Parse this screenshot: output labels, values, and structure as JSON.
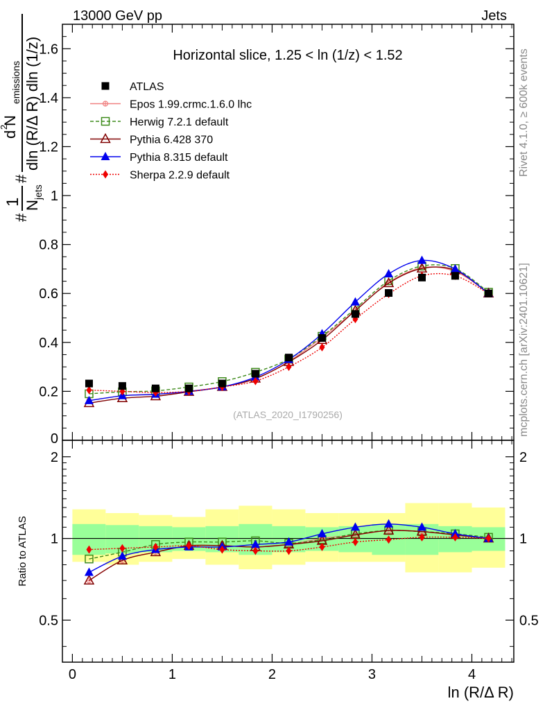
{
  "header": {
    "left": "13000 GeV pp",
    "right": "Jets",
    "plot_title": "Horizontal slice, 1.25 < ln (1/z) < 1.52",
    "watermark": "(ATLAS_2020_I1790256)",
    "side_top": "Rivet 4.1.0, ≥ 600k events",
    "side_bottom": "mcplots.cern.ch [arXiv:2401.10621]"
  },
  "labels": {
    "y_main": "1/N_jets dN_emissions/dln(R/ΔR) dln(1/z)",
    "y_main_parts": {
      "frac1_num": "1",
      "frac1_den": "N",
      "frac1_den_sub": "jets",
      "frac2_num_prefix": "d",
      "frac2_num_sup": "2",
      "frac2_num_main": " N",
      "frac2_num_sub": "emissions",
      "frac2_den": "dln (R/Δ R) dln (1/z)",
      "hash": "#"
    },
    "y_ratio": "Ratio to ATLAS",
    "x": "ln (R/Δ R)"
  },
  "colors": {
    "atlas": "#000000",
    "epos": "#f08080",
    "herwig": "#3d8a1a",
    "pythia6": "#800000",
    "pythia8": "#0000ee",
    "sherpa": "#ee0000",
    "band_inner": "#99ff99",
    "band_outer": "#ffff99"
  },
  "chart_data": {
    "type": "line",
    "title": "Horizontal slice, 1.25 < ln (1/z) < 1.52",
    "xlabel": "ln (R/Δ R)",
    "ylabel": "1/N_jets dN_emissions/dln(R/ΔR) dln(1/z)",
    "xlim": [
      -0.1,
      4.42
    ],
    "ylim": [
      0,
      1.7
    ],
    "ratio_ylim": [
      0.35,
      2.3
    ],
    "x_ticks": [
      0,
      1,
      2,
      3,
      4
    ],
    "x_tick_labels": [
      "0",
      "1",
      "2",
      "3",
      "4"
    ],
    "y_ticks": [
      0.2,
      0.4,
      0.6,
      0.8,
      1,
      1.2,
      1.4,
      1.6
    ],
    "y_tick_labels": [
      "0.2",
      "0.4",
      "0.6",
      "0.8",
      "1",
      "1.2",
      "1.4",
      "1.6"
    ],
    "y_ticks_extra_label": "0",
    "ratio_ticks": [
      0.5,
      1,
      2
    ],
    "ratio_tick_labels": [
      "0.5",
      "1",
      "2"
    ],
    "bin_edges": [
      0,
      0.333,
      0.666,
      1.0,
      1.333,
      1.666,
      2.0,
      2.333,
      2.666,
      3.0,
      3.333,
      3.666,
      4.0,
      4.333
    ],
    "x": [
      0.167,
      0.5,
      0.833,
      1.167,
      1.5,
      1.833,
      2.167,
      2.5,
      2.833,
      3.167,
      3.5,
      3.833,
      4.167
    ],
    "band_inner": [
      [
        0.87,
        1.13
      ],
      [
        0.88,
        1.12
      ],
      [
        0.89,
        1.11
      ],
      [
        0.9,
        1.1
      ],
      [
        0.89,
        1.11
      ],
      [
        0.87,
        1.13
      ],
      [
        0.89,
        1.11
      ],
      [
        0.9,
        1.1
      ],
      [
        0.89,
        1.11
      ],
      [
        0.87,
        1.13
      ],
      [
        0.87,
        1.13
      ],
      [
        0.89,
        1.11
      ],
      [
        0.9,
        1.1
      ]
    ],
    "band_outer": [
      [
        0.82,
        1.28
      ],
      [
        0.8,
        1.24
      ],
      [
        0.82,
        1.22
      ],
      [
        0.84,
        1.2
      ],
      [
        0.8,
        1.28
      ],
      [
        0.77,
        1.32
      ],
      [
        0.8,
        1.28
      ],
      [
        0.82,
        1.24
      ],
      [
        0.82,
        1.24
      ],
      [
        0.82,
        1.24
      ],
      [
        0.75,
        1.35
      ],
      [
        0.75,
        1.35
      ],
      [
        0.78,
        1.3
      ]
    ],
    "legend_position": "top-left",
    "series": [
      {
        "name": "ATLAS",
        "key": "atlas",
        "values": [
          0.232,
          0.222,
          0.212,
          0.212,
          0.232,
          0.272,
          0.338,
          0.418,
          0.516,
          0.602,
          0.665,
          0.672,
          0.6
        ],
        "ratio": [
          1,
          1,
          1,
          1,
          1,
          1,
          1,
          1,
          1,
          1,
          1,
          1,
          1
        ],
        "marker": "square",
        "dash": ""
      },
      {
        "name": "Epos 1.99.crmc.1.6.0 lhc",
        "key": "epos",
        "values": [
          0.162,
          0.182,
          0.188,
          0.2,
          0.218,
          0.252,
          0.322,
          0.42,
          0.53,
          0.645,
          0.705,
          0.69,
          0.602
        ],
        "ratio": [
          0.7,
          0.83,
          0.89,
          0.94,
          0.94,
          0.93,
          0.95,
          1.0,
          1.03,
          1.07,
          1.06,
          1.03,
          1.0
        ],
        "marker": "cross",
        "dash": ""
      },
      {
        "name": "Herwig 7.2.1 default",
        "key": "herwig",
        "values": [
          0.19,
          0.198,
          0.202,
          0.218,
          0.24,
          0.278,
          0.332,
          0.425,
          0.538,
          0.652,
          0.712,
          0.702,
          0.605
        ],
        "ratio": [
          0.84,
          0.89,
          0.95,
          0.97,
          0.97,
          0.98,
          0.96,
          0.99,
          1.04,
          1.07,
          1.06,
          1.04,
          1.01
        ],
        "marker": "open-square",
        "dash": "5,3"
      },
      {
        "name": "Pythia 6.428 370",
        "key": "pythia6",
        "values": [
          0.152,
          0.172,
          0.18,
          0.198,
          0.218,
          0.252,
          0.32,
          0.41,
          0.53,
          0.642,
          0.702,
          0.695,
          0.6
        ],
        "ratio": [
          0.7,
          0.83,
          0.89,
          0.94,
          0.94,
          0.93,
          0.95,
          0.98,
          1.03,
          1.07,
          1.06,
          1.03,
          1.0
        ],
        "marker": "open-triangle",
        "dash": ""
      },
      {
        "name": "Pythia 8.315 default",
        "key": "pythia8",
        "values": [
          0.162,
          0.182,
          0.188,
          0.2,
          0.218,
          0.258,
          0.33,
          0.435,
          0.565,
          0.68,
          0.735,
          0.7,
          0.6
        ],
        "ratio": [
          0.75,
          0.86,
          0.91,
          0.93,
          0.93,
          0.95,
          0.97,
          1.04,
          1.1,
          1.13,
          1.1,
          1.04,
          1.0
        ],
        "marker": "triangle",
        "dash": ""
      },
      {
        "name": "Sherpa 2.2.9 default",
        "key": "sherpa",
        "values": [
          0.205,
          0.2,
          0.195,
          0.2,
          0.218,
          0.242,
          0.3,
          0.38,
          0.495,
          0.598,
          0.672,
          0.672,
          0.6
        ],
        "ratio": [
          0.91,
          0.92,
          0.93,
          0.94,
          0.91,
          0.9,
          0.9,
          0.93,
          0.97,
          0.99,
          1.01,
          1.01,
          1.0
        ],
        "marker": "diamond",
        "dash": "2,2"
      }
    ]
  }
}
